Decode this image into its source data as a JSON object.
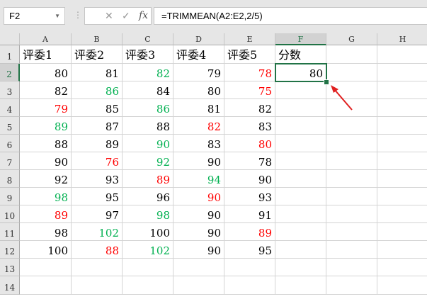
{
  "name_box": "F2",
  "formula": "=TRIMMEAN(A2:E2,2/5)",
  "formula_buttons": {
    "cancel": "✕",
    "enter": "✓",
    "fx": "fx"
  },
  "columns": [
    "A",
    "B",
    "C",
    "D",
    "E",
    "F",
    "G",
    "H"
  ],
  "rows": [
    "1",
    "2",
    "3",
    "4",
    "5",
    "6",
    "7",
    "8",
    "9",
    "10",
    "11",
    "12",
    "13",
    "14"
  ],
  "headers": [
    "评委1",
    "评委2",
    "评委3",
    "评委4",
    "评委5",
    "分数"
  ],
  "data": [
    [
      80,
      81,
      82,
      79,
      78
    ],
    [
      82,
      86,
      84,
      80,
      75
    ],
    [
      79,
      85,
      86,
      81,
      82
    ],
    [
      89,
      87,
      88,
      82,
      83
    ],
    [
      88,
      89,
      90,
      83,
      80
    ],
    [
      90,
      76,
      92,
      90,
      78
    ],
    [
      92,
      93,
      89,
      94,
      90
    ],
    [
      98,
      95,
      96,
      90,
      93
    ],
    [
      89,
      97,
      98,
      90,
      91
    ],
    [
      98,
      102,
      100,
      90,
      89
    ],
    [
      100,
      88,
      102,
      90,
      95
    ]
  ],
  "score": "80",
  "colors": {
    "max": "#00b050",
    "min": "#ff0000",
    "normal": "#000000",
    "accent": "#217346",
    "arrow": "#e02020"
  }
}
